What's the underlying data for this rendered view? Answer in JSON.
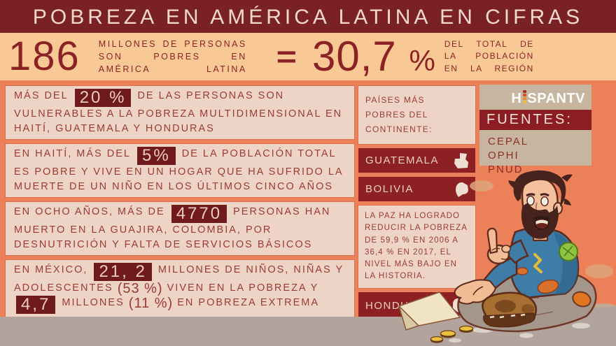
{
  "title": "POBREZA EN AMÉRICA LATINA EN CIFRAS",
  "headline": {
    "big_number": "186",
    "left_lines": [
      "MILLONES DE PERSONAS",
      "SON POBRES EN",
      "AMÉRICA LATINA"
    ],
    "equals": "=",
    "percent_value": "30,7",
    "percent_sign": "%",
    "right_lines": [
      "DEL TOTAL DE",
      "LA POBLACIÓN",
      "EN LA REGIÓN"
    ]
  },
  "facts": [
    {
      "segments": [
        {
          "text": "MÁS DEL",
          "style": "normal"
        },
        {
          "text": "20 %",
          "style": "hl"
        },
        {
          "text": "DE LAS PERSONAS SON VULNERABLES A LA POBREZA MULTIDIMENSIONAL EN HAITÍ, GUATEMALA Y HONDURAS",
          "style": "normal"
        }
      ]
    },
    {
      "segments": [
        {
          "text": "EN HAITÍ, MÁS DEL",
          "style": "normal"
        },
        {
          "text": "5%",
          "style": "hl"
        },
        {
          "text": "DE LA POBLACIÓN TOTAL ES POBRE Y VIVE EN UN HOGAR QUE HA SUFRIDO LA MUERTE DE UN NIÑO EN LOS ÚLTIMOS CINCO AÑOS",
          "style": "normal"
        }
      ]
    },
    {
      "segments": [
        {
          "text": "EN OCHO AÑOS, MÁS DE",
          "style": "normal"
        },
        {
          "text": "4770",
          "style": "hl"
        },
        {
          "text": "PERSONAS HAN MUERTO EN LA GUAJIRA, COLOMBIA, POR DESNUTRICIÓN Y FALTA DE SERVICIOS BÁSICOS",
          "style": "normal"
        }
      ]
    },
    {
      "segments": [
        {
          "text": "EN MÉXICO,",
          "style": "normal"
        },
        {
          "text": "21, 2",
          "style": "hl"
        },
        {
          "text": "MILLONES DE NIÑOS, NIÑAS Y ADOLESCENTES",
          "style": "normal"
        },
        {
          "text": "(53 %)",
          "style": "big"
        },
        {
          "text": "VIVEN EN LA POBREZA Y",
          "style": "normal"
        },
        {
          "text": "4,7",
          "style": "hl"
        },
        {
          "text": "MILLONES",
          "style": "normal"
        },
        {
          "text": "(11 %)",
          "style": "big"
        },
        {
          "text": "EN POBREZA EXTREMA",
          "style": "normal"
        }
      ]
    }
  ],
  "countries_panel": {
    "heading": "PAÍSES MÁS POBRES DEL CONTINENTE:",
    "items": [
      {
        "name": "GUATEMALA",
        "icon": "guatemala-map-icon"
      },
      {
        "name": "BOLIVIA",
        "icon": "bolivia-map-icon",
        "note": "LA PAZ HA LOGRADO REDUCIR LA POBREZA DE 59,9 % EN 2006 A 36,4 % EN 2017, EL NIVEL MÁS BAJO EN LA HISTORIA."
      },
      {
        "name": "HONDURAS",
        "icon": "honduras-map-icon"
      }
    ]
  },
  "sources": {
    "logo_prefix": "H",
    "logo_suffix": "SPANTV",
    "heading": "FUENTES:",
    "items": [
      "CEPAL",
      "OPHI",
      "PNUD"
    ]
  },
  "colors": {
    "background_salmon": "#ec8059",
    "title_bar": "#7a2125",
    "title_text": "#f2d9cd",
    "headline_band": "#f9c995",
    "maroon_text": "#8c2126",
    "panel_pink": "#edd4c7",
    "fact_text": "#9c3b31",
    "highlight_bg": "#6f1a1c",
    "highlight_text": "#eecdbd",
    "country_band": "#8c2023",
    "sources_box": "#c7b5a0",
    "ground": "#b2a49c"
  }
}
